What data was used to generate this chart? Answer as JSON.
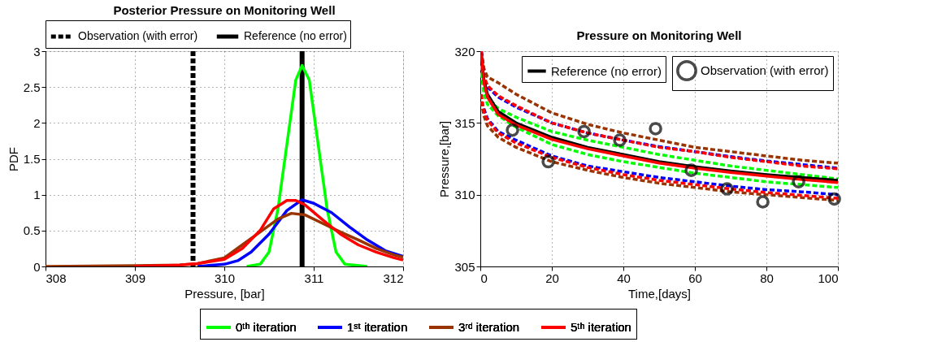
{
  "chart_data": [
    {
      "type": "line",
      "title": "Posterior Pressure on Monitoring Well",
      "xlabel": "Pressure, [bar]",
      "ylabel": "PDF",
      "xlim": [
        308,
        312
      ],
      "xticks": [
        308,
        309,
        310,
        311,
        312
      ],
      "ylim": [
        0,
        3
      ],
      "yticks": [
        0,
        0.5,
        1,
        1.5,
        2,
        2.5,
        3
      ],
      "grid": true,
      "legend": "bottom",
      "series": [
        {
          "name": "0ᵗʰ iteration",
          "color": "#00ff00",
          "x": [
            310.25,
            310.4,
            310.5,
            310.6,
            310.7,
            310.8,
            310.87,
            310.95,
            311.05,
            311.15,
            311.25,
            311.35,
            311.6
          ],
          "values": [
            0,
            0.03,
            0.2,
            0.8,
            1.7,
            2.6,
            2.8,
            2.6,
            1.7,
            0.8,
            0.2,
            0.03,
            0
          ]
        },
        {
          "name": "1ˢᵗ iteration",
          "color": "#0000ff",
          "x": [
            309.7,
            310,
            310.15,
            310.3,
            310.5,
            310.7,
            310.87,
            311,
            311.2,
            311.4,
            311.6,
            311.8,
            312
          ],
          "values": [
            0,
            0.03,
            0.08,
            0.2,
            0.45,
            0.78,
            0.93,
            0.88,
            0.75,
            0.55,
            0.37,
            0.22,
            0.14
          ]
        },
        {
          "name": "3ʳᵈ iteration",
          "color": "#993300",
          "x": [
            308,
            309,
            309.5,
            309.7,
            310,
            310.2,
            310.4,
            310.6,
            310.75,
            310.9,
            311.1,
            311.3,
            311.5,
            311.7,
            311.9,
            312
          ],
          "values": [
            0,
            0.01,
            0.02,
            0.04,
            0.12,
            0.3,
            0.48,
            0.66,
            0.74,
            0.72,
            0.6,
            0.48,
            0.37,
            0.25,
            0.16,
            0.13
          ]
        },
        {
          "name": "5ᵗʰ iteration",
          "color": "#ff0000",
          "x": [
            309,
            309.5,
            309.7,
            310,
            310.2,
            310.4,
            310.55,
            310.7,
            310.8,
            310.9,
            311.1,
            311.3,
            311.5,
            311.7,
            311.9,
            312
          ],
          "values": [
            0,
            0.02,
            0.04,
            0.1,
            0.25,
            0.5,
            0.8,
            0.92,
            0.92,
            0.86,
            0.65,
            0.45,
            0.3,
            0.2,
            0.12,
            0.09
          ]
        }
      ],
      "ref_lines": [
        {
          "axis": "x",
          "value": 309.65,
          "label": "Observation (with error)",
          "color": "#000000",
          "line_style": "dashed"
        },
        {
          "axis": "x",
          "value": 310.87,
          "label": "Reference (no error)",
          "color": "#000000",
          "line_style": "solid"
        }
      ]
    },
    {
      "type": "line",
      "title": "Pressure on Monitoring Well",
      "xlabel": "Time,[days]",
      "ylabel": "Pressure,[bar]",
      "xlim": [
        0,
        100
      ],
      "xticks": [
        0,
        20,
        40,
        60,
        80,
        100
      ],
      "ylim": [
        305,
        320
      ],
      "yticks": [
        305,
        310,
        315,
        320
      ],
      "grid": true,
      "legend": "top right",
      "series": [
        {
          "color": "#993300",
          "line_style": "dashed",
          "x": [
            0.3,
            1,
            2,
            5,
            10,
            20,
            30,
            40,
            50,
            60,
            70,
            80,
            90,
            100
          ],
          "values": [
            320,
            318.8,
            318.2,
            317.8,
            317,
            315.7,
            314.9,
            314.3,
            313.8,
            313.3,
            313,
            312.7,
            312.4,
            312.2
          ]
        },
        {
          "color": "#993300",
          "line_style": "dashed",
          "x": [
            0.3,
            1,
            2,
            5,
            10,
            20,
            30,
            40,
            50,
            60,
            70,
            80,
            90,
            100
          ],
          "values": [
            316.5,
            315.5,
            314.8,
            314,
            313.3,
            312.3,
            311.7,
            311.2,
            310.8,
            310.5,
            310.2,
            310,
            309.8,
            309.6
          ]
        },
        {
          "color": "#0000ff",
          "line_style": "dashed",
          "x": [
            0.3,
            1,
            2,
            5,
            10,
            20,
            30,
            40,
            50,
            60,
            70,
            80,
            90,
            100
          ],
          "values": [
            320,
            318.2,
            317.5,
            316.8,
            316.1,
            315,
            314.3,
            313.8,
            313.35,
            313,
            312.65,
            312.35,
            312.1,
            311.85
          ]
        },
        {
          "color": "#0000ff",
          "line_style": "dashed",
          "x": [
            1,
            2,
            5,
            10,
            20,
            30,
            40,
            50,
            60,
            70,
            80,
            90,
            100
          ],
          "values": [
            316,
            315.3,
            314.4,
            313.8,
            312.7,
            312,
            311.6,
            311.2,
            310.9,
            310.6,
            310.35,
            310.2,
            310
          ]
        },
        {
          "color": "#ff0000",
          "line_style": "dashed",
          "x": [
            0.3,
            1,
            2,
            5,
            10,
            20,
            30,
            40,
            50,
            60,
            70,
            80,
            90,
            100
          ],
          "values": [
            320,
            318.3,
            317.6,
            316.9,
            316.2,
            315,
            314.3,
            313.8,
            313.3,
            313,
            312.6,
            312.3,
            312,
            311.8
          ]
        },
        {
          "color": "#ff0000",
          "line_style": "dashed",
          "x": [
            0.3,
            1,
            2,
            5,
            10,
            20,
            30,
            40,
            50,
            60,
            70,
            80,
            90,
            100
          ],
          "values": [
            317,
            315.8,
            315.2,
            314.3,
            313.6,
            312.6,
            311.9,
            311.4,
            311,
            310.7,
            310.4,
            310.15,
            309.95,
            309.75
          ]
        },
        {
          "color": "#00ff00",
          "line_style": "dashed",
          "x": [
            0.3,
            1,
            2,
            5,
            10,
            20,
            30,
            40,
            50,
            60,
            70,
            80,
            90,
            100
          ],
          "values": [
            319,
            317.5,
            316.8,
            316,
            315.4,
            314.4,
            313.8,
            313.3,
            312.8,
            312.4,
            312,
            311.7,
            311.4,
            311.1
          ]
        },
        {
          "color": "#00ff00",
          "line_style": "dashed",
          "x": [
            0.3,
            1,
            2,
            5,
            10,
            20,
            30,
            40,
            50,
            60,
            70,
            80,
            90,
            100
          ],
          "values": [
            318.5,
            317,
            316.3,
            315.5,
            314.7,
            313.5,
            312.8,
            312.3,
            311.9,
            311.5,
            311.2,
            310.9,
            310.7,
            310.5
          ]
        },
        {
          "name": "Reference (no error)",
          "color": "#000000",
          "line_style": "solid",
          "x": [
            0.3,
            1,
            2,
            5,
            10,
            20,
            30,
            40,
            50,
            60,
            70,
            80,
            90,
            100
          ],
          "values": [
            319.8,
            318,
            317,
            315.8,
            315,
            314,
            313.3,
            312.8,
            312.3,
            311.95,
            311.65,
            311.4,
            311.2,
            311
          ]
        },
        {
          "color": "#ff0000",
          "line_style": "solid",
          "x": [
            0.3,
            1,
            2,
            5,
            10,
            20,
            30,
            40,
            50,
            60,
            70,
            80,
            90,
            100
          ],
          "values": [
            319.8,
            317.8,
            316.8,
            315.6,
            314.85,
            313.85,
            313.2,
            312.7,
            312.2,
            311.85,
            311.55,
            311.3,
            311.05,
            310.85
          ]
        },
        {
          "type": "scatter",
          "name": "Observation (with error)",
          "color": "#000000",
          "marker": "circle",
          "x": [
            9,
            19,
            29,
            39,
            49,
            59,
            69,
            79,
            89,
            99
          ],
          "values": [
            314.5,
            312.3,
            314.4,
            313.8,
            314.6,
            311.7,
            310.4,
            309.5,
            310.9,
            309.7
          ]
        }
      ]
    }
  ]
}
